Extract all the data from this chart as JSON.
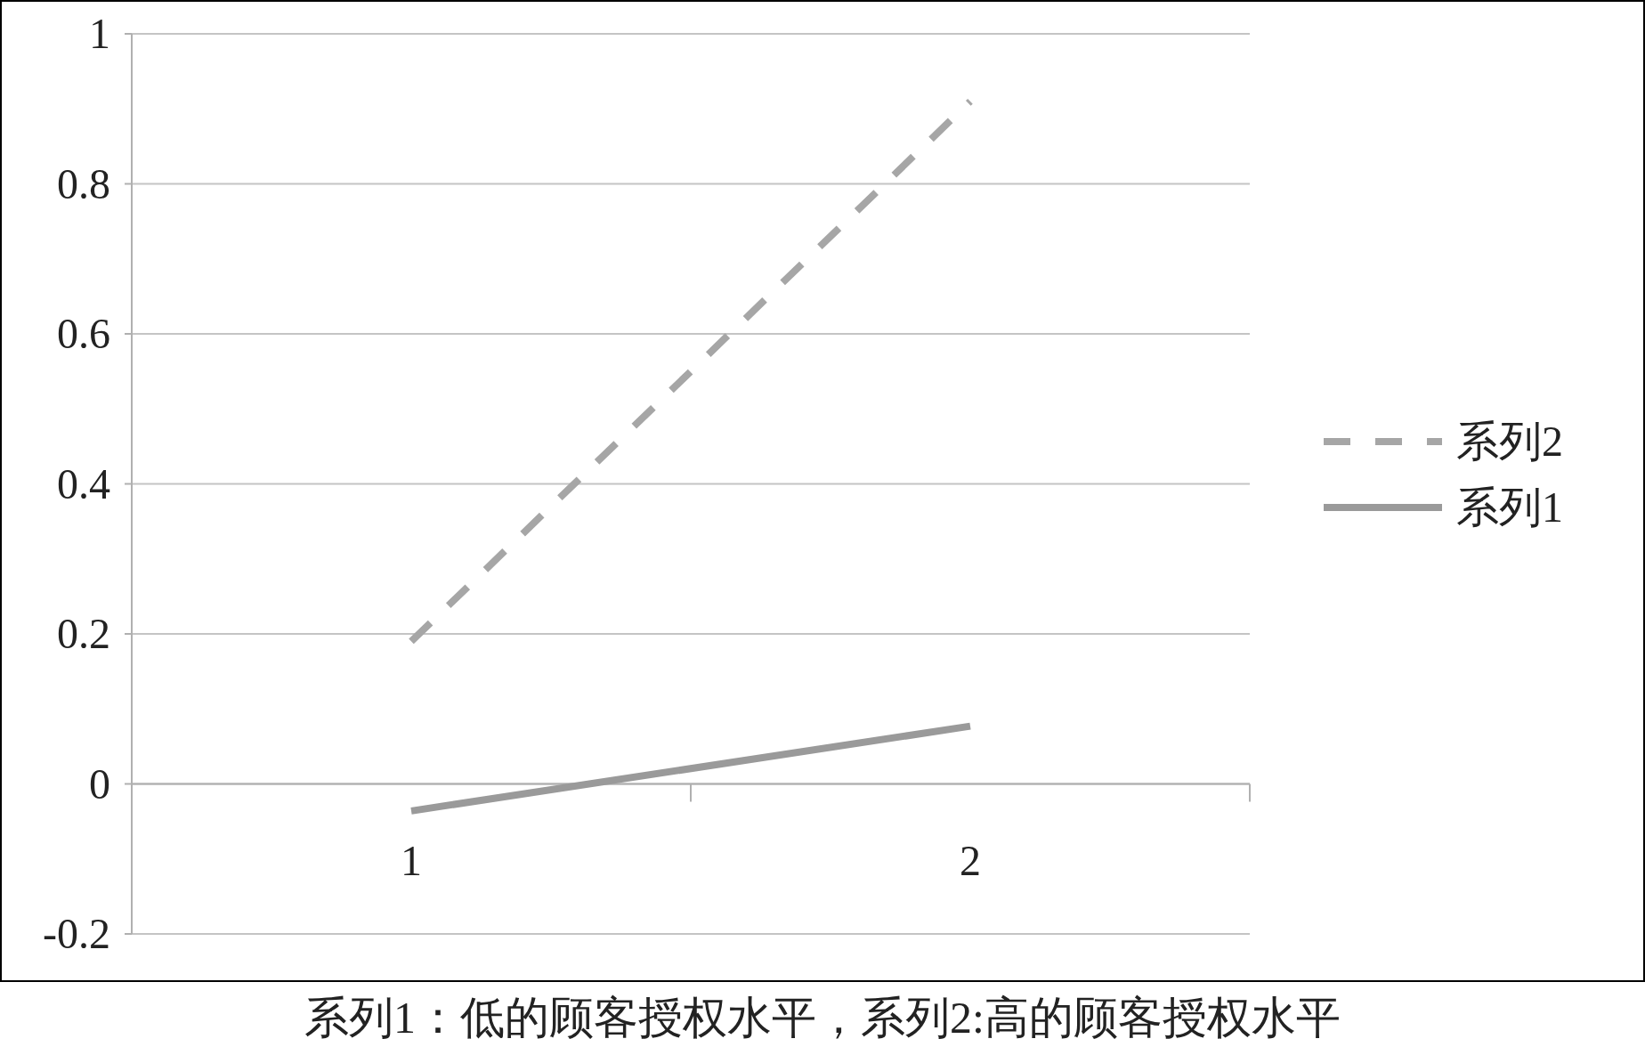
{
  "chart_data": {
    "type": "line",
    "categories": [
      "1",
      "2"
    ],
    "series": [
      {
        "name": "系列2",
        "color": "#a6a6a6",
        "line_style": "dashed",
        "values": [
          0.19,
          0.91
        ]
      },
      {
        "name": "系列1",
        "color": "#9a9a9a",
        "line_style": "solid",
        "values": [
          -0.036,
          0.077
        ]
      }
    ],
    "ylim": [
      -0.2,
      1
    ],
    "yticks": [
      -0.2,
      0,
      0.2,
      0.4,
      0.6,
      0.8,
      1
    ],
    "grid": "y",
    "legend": "right",
    "annotations": [
      "系列1：低的顾客授权水平，系列2:高的顾客授权水平"
    ]
  }
}
